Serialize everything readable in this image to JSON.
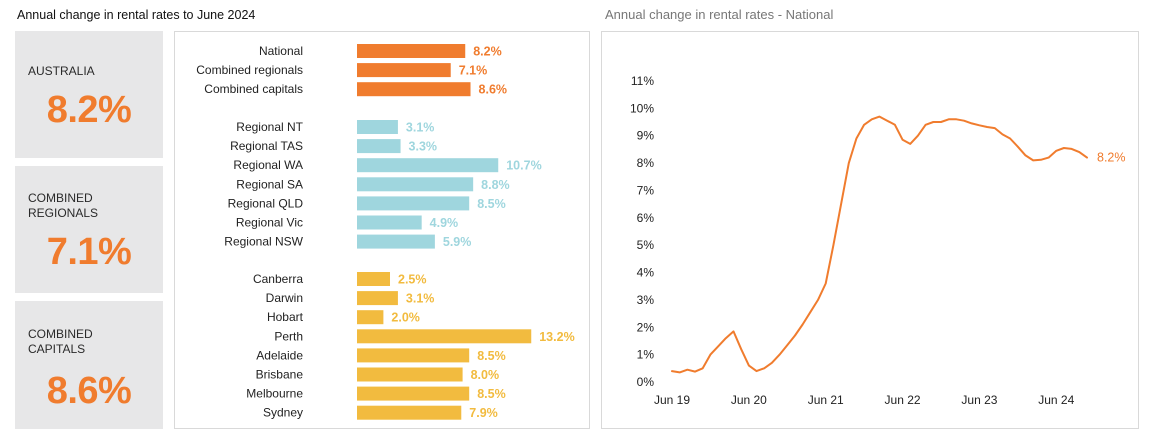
{
  "header": {
    "left_title": "Annual change in rental rates to June 2024",
    "right_title": "Annual change in rental rates - National"
  },
  "kpis": [
    {
      "label_lines": [
        "AUSTRALIA"
      ],
      "value": "8.2%"
    },
    {
      "label_lines": [
        "COMBINED",
        "REGIONALS"
      ],
      "value": "7.1%"
    },
    {
      "label_lines": [
        "COMBINED",
        "CAPITALS"
      ],
      "value": "8.6%"
    }
  ],
  "colors": {
    "orange": "#f07c2e",
    "teal": "#9fd6de",
    "yellow": "#f2bb3f",
    "kpi_bg": "#e7e7e8"
  },
  "chart_data": [
    {
      "type": "bar",
      "orientation": "horizontal",
      "title": "",
      "groups": [
        {
          "color": "#f07c2e",
          "categories": [
            "National",
            "Combined regionals",
            "Combined capitals"
          ],
          "values": [
            8.2,
            7.1,
            8.6
          ],
          "labels": [
            "8.2%",
            "7.1%",
            "8.6%"
          ]
        },
        {
          "color": "#9fd6de",
          "categories": [
            "Regional NT",
            "Regional TAS",
            "Regional WA",
            "Regional SA",
            "Regional QLD",
            "Regional Vic",
            "Regional NSW"
          ],
          "values": [
            3.1,
            3.3,
            10.7,
            8.8,
            8.5,
            4.9,
            5.9
          ],
          "labels": [
            "3.1%",
            "3.3%",
            "10.7%",
            "8.8%",
            "8.5%",
            "4.9%",
            "5.9%"
          ]
        },
        {
          "color": "#f2bb3f",
          "categories": [
            "Canberra",
            "Darwin",
            "Hobart",
            "Perth",
            "Adelaide",
            "Brisbane",
            "Melbourne",
            "Sydney"
          ],
          "values": [
            2.5,
            3.1,
            2.0,
            13.2,
            8.5,
            8.0,
            8.5,
            7.9
          ],
          "labels": [
            "2.5%",
            "3.1%",
            "2.0%",
            "13.2%",
            "8.5%",
            "8.0%",
            "8.5%",
            "7.9%"
          ]
        }
      ]
    },
    {
      "type": "line",
      "title": "Annual change in rental rates - National",
      "series": [
        {
          "color": "#f07c2e",
          "end_label": "8.2%",
          "points": [
            [
              2019.5,
              0.4
            ],
            [
              2019.6,
              0.35
            ],
            [
              2019.7,
              0.45
            ],
            [
              2019.8,
              0.38
            ],
            [
              2019.9,
              0.5
            ],
            [
              2020.0,
              1.0
            ],
            [
              2020.1,
              1.3
            ],
            [
              2020.2,
              1.6
            ],
            [
              2020.3,
              1.85
            ],
            [
              2020.4,
              1.2
            ],
            [
              2020.5,
              0.6
            ],
            [
              2020.6,
              0.4
            ],
            [
              2020.7,
              0.5
            ],
            [
              2020.8,
              0.7
            ],
            [
              2020.9,
              1.0
            ],
            [
              2021.0,
              1.35
            ],
            [
              2021.1,
              1.7
            ],
            [
              2021.2,
              2.1
            ],
            [
              2021.3,
              2.55
            ],
            [
              2021.4,
              3.0
            ],
            [
              2021.5,
              3.6
            ],
            [
              2021.6,
              5.0
            ],
            [
              2021.7,
              6.5
            ],
            [
              2021.8,
              8.0
            ],
            [
              2021.9,
              8.9
            ],
            [
              2022.0,
              9.4
            ],
            [
              2022.1,
              9.6
            ],
            [
              2022.2,
              9.7
            ],
            [
              2022.3,
              9.55
            ],
            [
              2022.4,
              9.4
            ],
            [
              2022.5,
              8.85
            ],
            [
              2022.6,
              8.7
            ],
            [
              2022.7,
              9.0
            ],
            [
              2022.8,
              9.4
            ],
            [
              2022.9,
              9.5
            ],
            [
              2023.0,
              9.5
            ],
            [
              2023.1,
              9.6
            ],
            [
              2023.2,
              9.6
            ],
            [
              2023.3,
              9.55
            ],
            [
              2023.4,
              9.45
            ],
            [
              2023.5,
              9.38
            ],
            [
              2023.6,
              9.32
            ],
            [
              2023.7,
              9.28
            ],
            [
              2023.8,
              9.05
            ],
            [
              2023.9,
              8.9
            ],
            [
              2024.0,
              8.6
            ],
            [
              2024.1,
              8.28
            ],
            [
              2024.2,
              8.1
            ],
            [
              2024.3,
              8.12
            ],
            [
              2024.4,
              8.2
            ],
            [
              2024.5,
              8.45
            ],
            [
              2024.6,
              8.55
            ],
            [
              2024.7,
              8.52
            ],
            [
              2024.8,
              8.4
            ],
            [
              2024.9,
              8.2
            ]
          ]
        }
      ],
      "x_ticks": [
        {
          "x": 2019.5,
          "label": "Jun 19"
        },
        {
          "x": 2020.5,
          "label": "Jun 20"
        },
        {
          "x": 2021.5,
          "label": "Jun 21"
        },
        {
          "x": 2022.5,
          "label": "Jun 22"
        },
        {
          "x": 2023.5,
          "label": "Jun 23"
        },
        {
          "x": 2024.5,
          "label": "Jun 24"
        }
      ],
      "y_ticks": [
        "0%",
        "1%",
        "2%",
        "3%",
        "4%",
        "5%",
        "6%",
        "7%",
        "8%",
        "9%",
        "10%",
        "11%"
      ],
      "xlim": [
        2019.5,
        2024.9
      ],
      "ylim": [
        0,
        11
      ],
      "grid": false,
      "legend": "none"
    }
  ]
}
